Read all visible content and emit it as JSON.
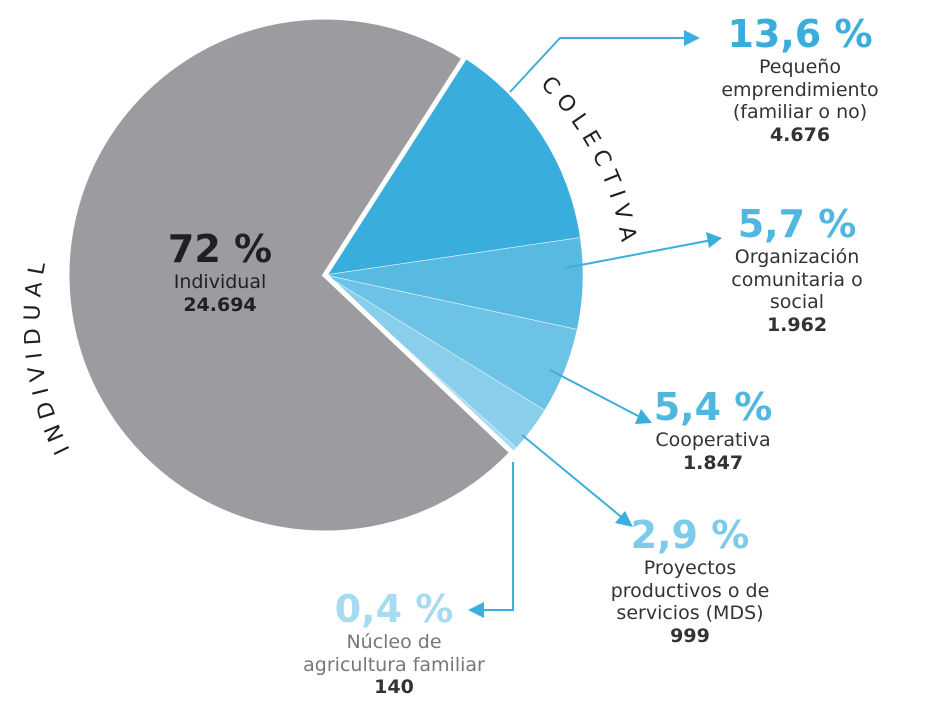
{
  "chart_data": {
    "type": "pie",
    "categories": [
      "Pequeño emprendimiento\n(familiar o no)",
      "Organización\ncomunitaria o social",
      "Cooperativa",
      "Proyectos\nproductivos o de\nservicios (MDS)",
      "Núcleo de\nagricultura familiar",
      "Individual"
    ],
    "values": [
      13.6,
      5.7,
      5.4,
      2.9,
      0.4,
      72
    ],
    "value_labels": [
      "13,6 %",
      "5,7 %",
      "5,4 %",
      "2,9 %",
      "0,4 %",
      "72 %"
    ],
    "counts": [
      4676,
      1962,
      1847,
      999,
      140,
      24694
    ],
    "count_labels": [
      "4.676",
      "1.962",
      "1.847",
      "999",
      "140",
      "24.694"
    ],
    "colors": [
      "#39aedc",
      "#58bae1",
      "#6cc3e6",
      "#89cfec",
      "#a7dbf1",
      "#9c9b9f"
    ],
    "label_colors": [
      "#39aedc",
      "#4fb7e0",
      "#4fb7e0",
      "#7ccbeb",
      "#a7dbf1",
      "#231f20"
    ],
    "groups": [
      "C O L E C T I V A",
      "I N D I V I D U A L"
    ]
  }
}
